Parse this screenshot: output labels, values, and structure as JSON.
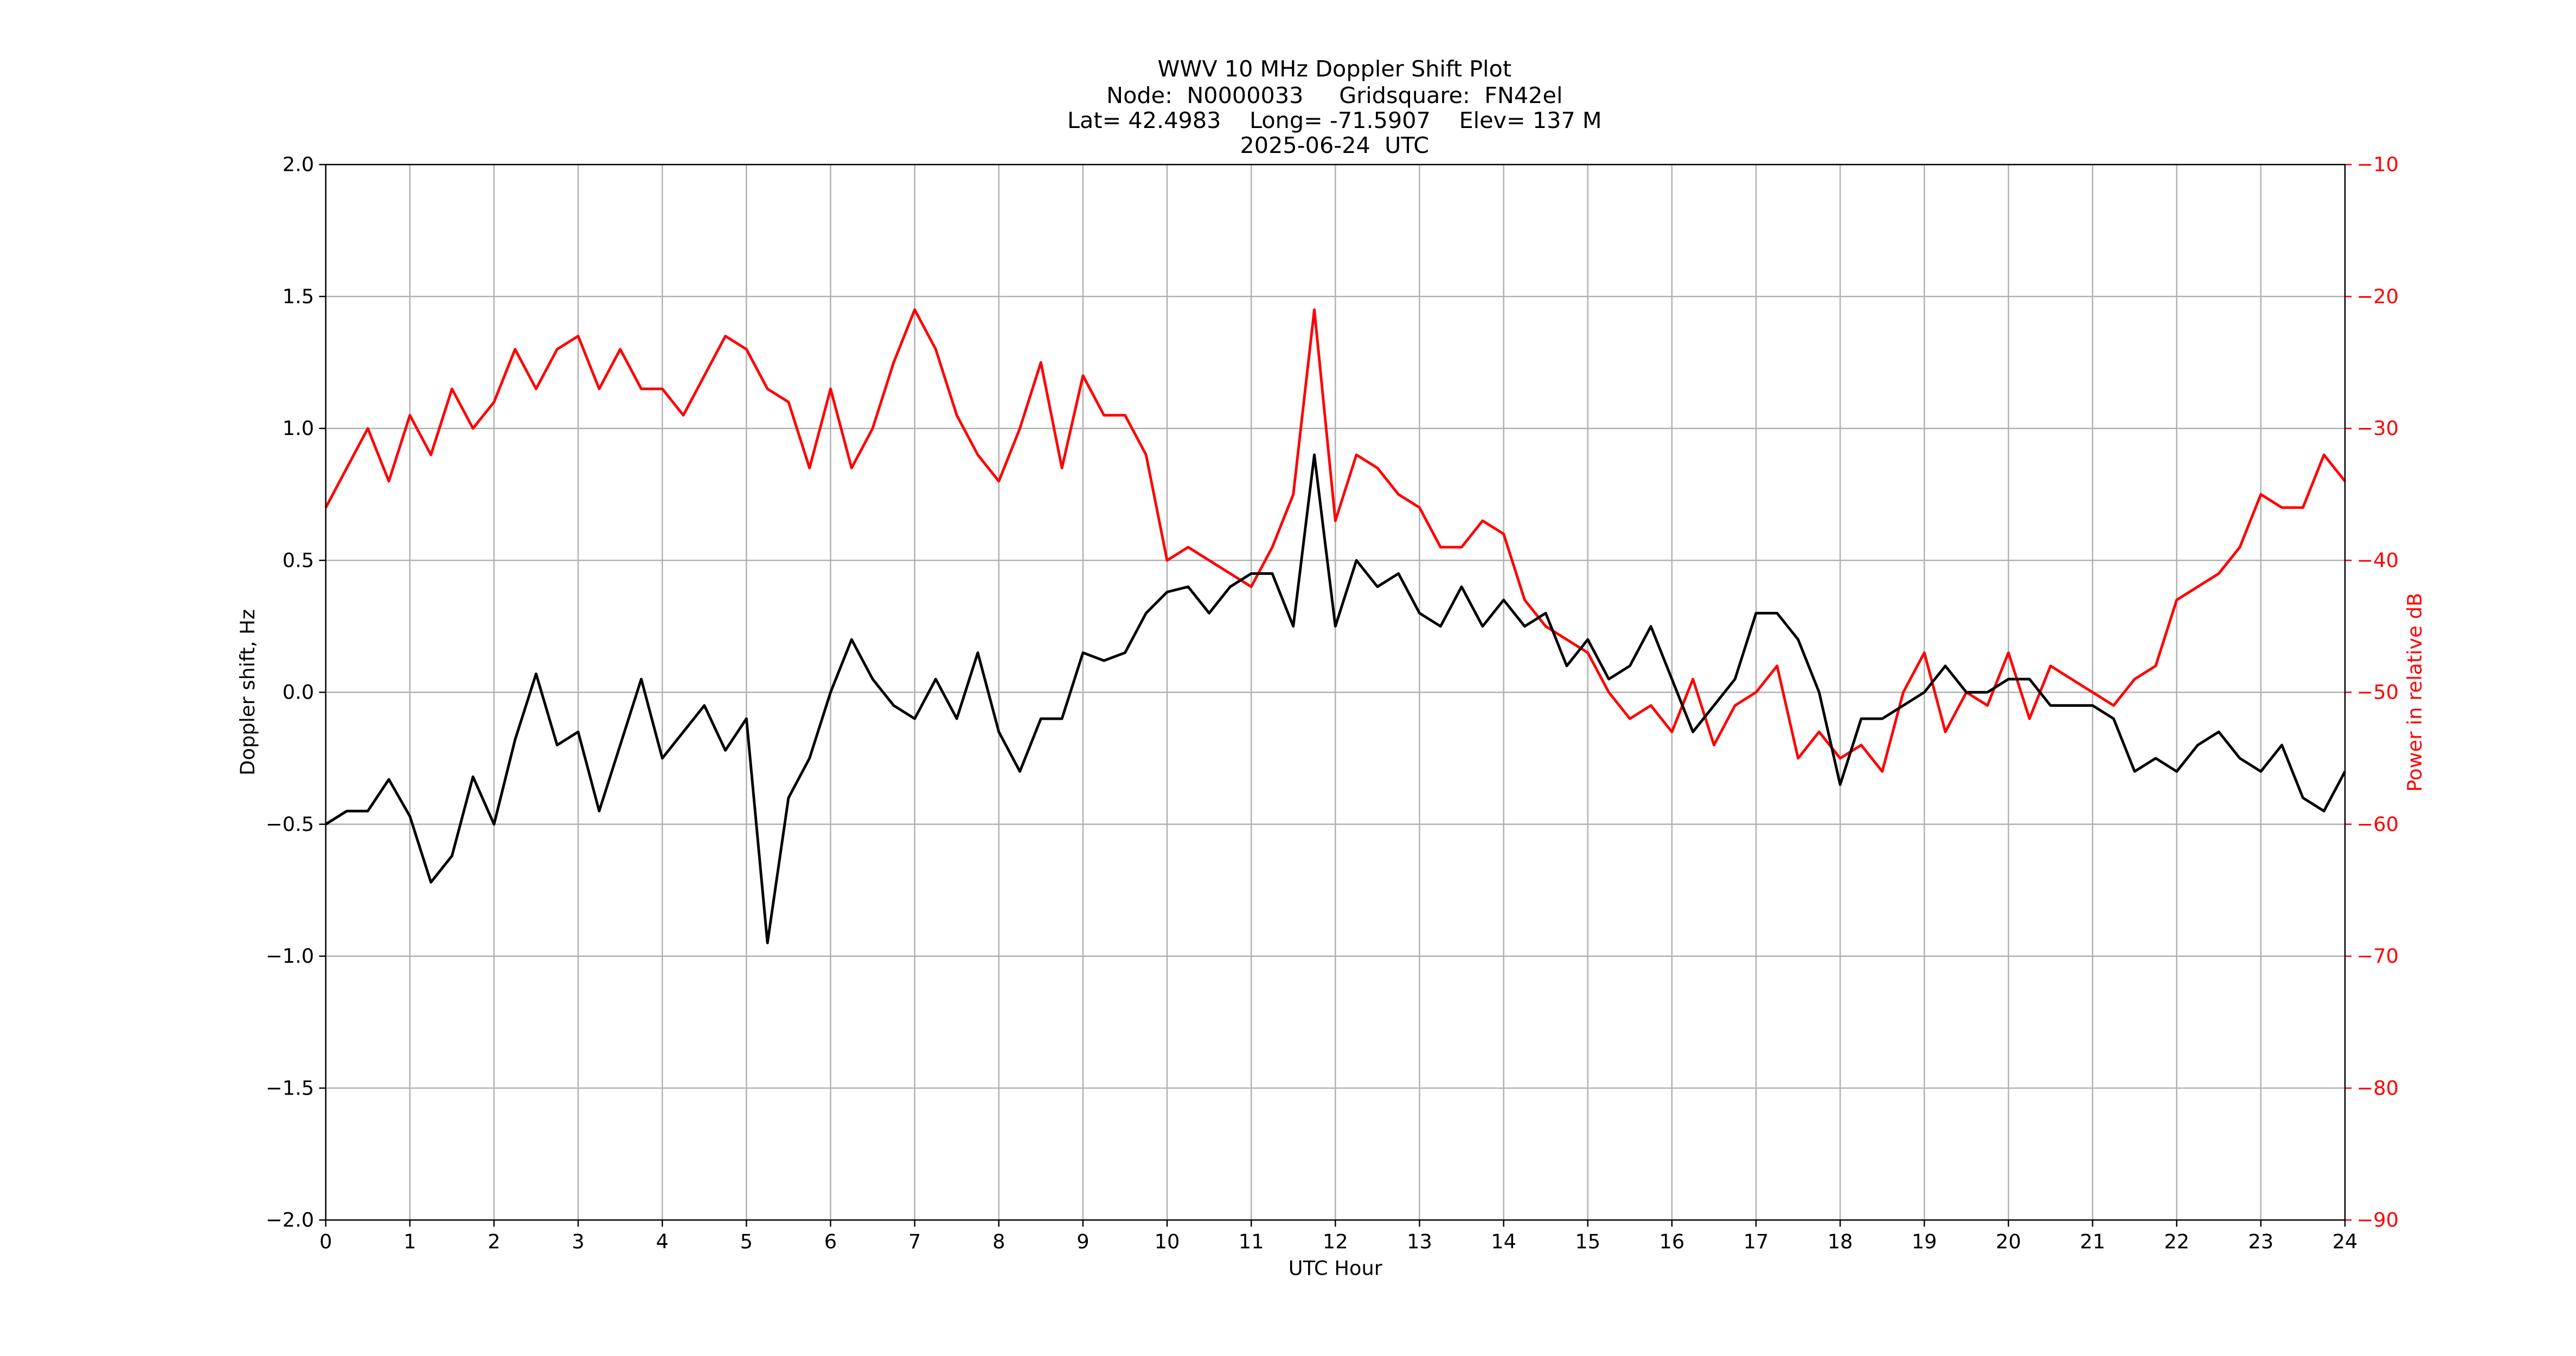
{
  "chart_data": {
    "type": "line",
    "title": "WWV 10 MHz Doppler Shift Plot",
    "subtitle": [
      "Node:  N0000033     Gridsquare:  FN42el",
      "Lat= 42.4983    Long= -71.5907    Elev= 137 M",
      "2025-06-24  UTC"
    ],
    "x_label": "UTC Hour",
    "y_label": "Doppler shift, Hz",
    "y2_label": "Power in relative dB",
    "x": [
      0,
      0.25,
      0.5,
      0.75,
      1,
      1.25,
      1.5,
      1.75,
      2,
      2.25,
      2.5,
      2.75,
      3,
      3.25,
      3.5,
      3.75,
      4,
      4.25,
      4.5,
      4.75,
      5,
      5.25,
      5.5,
      5.75,
      6,
      6.25,
      6.5,
      6.75,
      7,
      7.25,
      7.5,
      7.75,
      8,
      8.25,
      8.5,
      8.75,
      9,
      9.25,
      9.5,
      9.75,
      10,
      10.25,
      10.5,
      10.75,
      11,
      11.25,
      11.5,
      11.75,
      12,
      12.25,
      12.5,
      12.75,
      13,
      13.25,
      13.5,
      13.75,
      14,
      14.25,
      14.5,
      14.75,
      15,
      15.25,
      15.5,
      15.75,
      16,
      16.25,
      16.5,
      16.75,
      17,
      17.25,
      17.5,
      17.75,
      18,
      18.25,
      18.5,
      18.75,
      19,
      19.25,
      19.5,
      19.75,
      20,
      20.25,
      20.5,
      20.75,
      21,
      21.25,
      21.5,
      21.75,
      22,
      22.25,
      22.5,
      22.75,
      23,
      23.25,
      23.5,
      23.75,
      24
    ],
    "series": [
      {
        "name": "Doppler shift",
        "color": "#000000",
        "axis": "y",
        "values": [
          -0.5,
          -0.45,
          -0.45,
          -0.33,
          -0.47,
          -0.72,
          -0.62,
          -0.32,
          -0.5,
          -0.18,
          0.07,
          -0.2,
          -0.15,
          -0.45,
          -0.2,
          0.05,
          -0.25,
          -0.15,
          -0.05,
          -0.22,
          -0.1,
          -0.95,
          -0.4,
          -0.25,
          0.0,
          0.2,
          0.05,
          -0.05,
          -0.1,
          0.05,
          -0.1,
          0.15,
          -0.15,
          -0.3,
          -0.1,
          -0.1,
          0.15,
          0.12,
          0.15,
          0.3,
          0.38,
          0.4,
          0.3,
          0.4,
          0.45,
          0.45,
          0.25,
          0.9,
          0.25,
          0.5,
          0.4,
          0.45,
          0.3,
          0.25,
          0.4,
          0.25,
          0.35,
          0.25,
          0.3,
          0.1,
          0.2,
          0.05,
          0.1,
          0.25,
          0.05,
          -0.15,
          -0.05,
          0.05,
          0.3,
          0.3,
          0.2,
          0.0,
          -0.35,
          -0.1,
          -0.1,
          -0.05,
          0.0,
          0.1,
          0.0,
          0.0,
          0.05,
          0.05,
          -0.05,
          -0.05,
          -0.05,
          -0.1,
          -0.3,
          -0.25,
          -0.3,
          -0.2,
          -0.15,
          -0.25,
          -0.3,
          -0.2,
          -0.4,
          -0.45,
          -0.3
        ]
      },
      {
        "name": "Power",
        "color": "#ff0000",
        "axis": "y2",
        "values": [
          -36,
          -33,
          -30,
          -34,
          -29,
          -32,
          -27,
          -30,
          -28,
          -24,
          -27,
          -24,
          -23,
          -27,
          -24,
          -27,
          -27,
          -29,
          -26,
          -23,
          -24,
          -27,
          -28,
          -33,
          -27,
          -33,
          -30,
          -25,
          -21,
          -24,
          -29,
          -32,
          -34,
          -30,
          -25,
          -33,
          -26,
          -29,
          -29,
          -32,
          -40,
          -39,
          -40,
          -41,
          -42,
          -39,
          -35,
          -21,
          -37,
          -32,
          -33,
          -35,
          -36,
          -39,
          -39,
          -37,
          -38,
          -43,
          -45,
          -46,
          -47,
          -50,
          -52,
          -51,
          -53,
          -49,
          -54,
          -51,
          -50,
          -48,
          -55,
          -53,
          -55,
          -54,
          -56,
          -50,
          -47,
          -53,
          -50,
          -51,
          -47,
          -52,
          -48,
          -49,
          -50,
          -51,
          -49,
          -48,
          -43,
          -42,
          -41,
          -39,
          -35,
          -36,
          -36,
          -32,
          -34
        ]
      }
    ],
    "xlim": [
      0,
      24
    ],
    "xticks": [
      0,
      1,
      2,
      3,
      4,
      5,
      6,
      7,
      8,
      9,
      10,
      11,
      12,
      13,
      14,
      15,
      16,
      17,
      18,
      19,
      20,
      21,
      22,
      23,
      24
    ],
    "ylim": [
      -2,
      2
    ],
    "yticks": [
      {
        "value": -2,
        "label": "−2.0"
      },
      {
        "value": -1.5,
        "label": "−1.5"
      },
      {
        "value": -1,
        "label": "−1.0"
      },
      {
        "value": -0.5,
        "label": "−0.5"
      },
      {
        "value": 0,
        "label": "0.0"
      },
      0.5,
      {
        "value": 1,
        "label": "1.0"
      },
      1.5,
      {
        "value": 2,
        "label": "2.0"
      }
    ],
    "y2lim": [
      -90,
      -10
    ],
    "y2ticks": [
      {
        "value": -90,
        "label": "−90"
      },
      {
        "value": -80,
        "label": "−80"
      },
      {
        "value": -70,
        "label": "−70"
      },
      {
        "value": -60,
        "label": "−60"
      },
      {
        "value": -50,
        "label": "−50"
      },
      {
        "value": -40,
        "label": "−40"
      },
      {
        "value": -30,
        "label": "−30"
      },
      {
        "value": -20,
        "label": "−20"
      },
      {
        "value": -10,
        "label": "−10"
      }
    ],
    "grid": true,
    "y2_color": "#ff0000"
  }
}
